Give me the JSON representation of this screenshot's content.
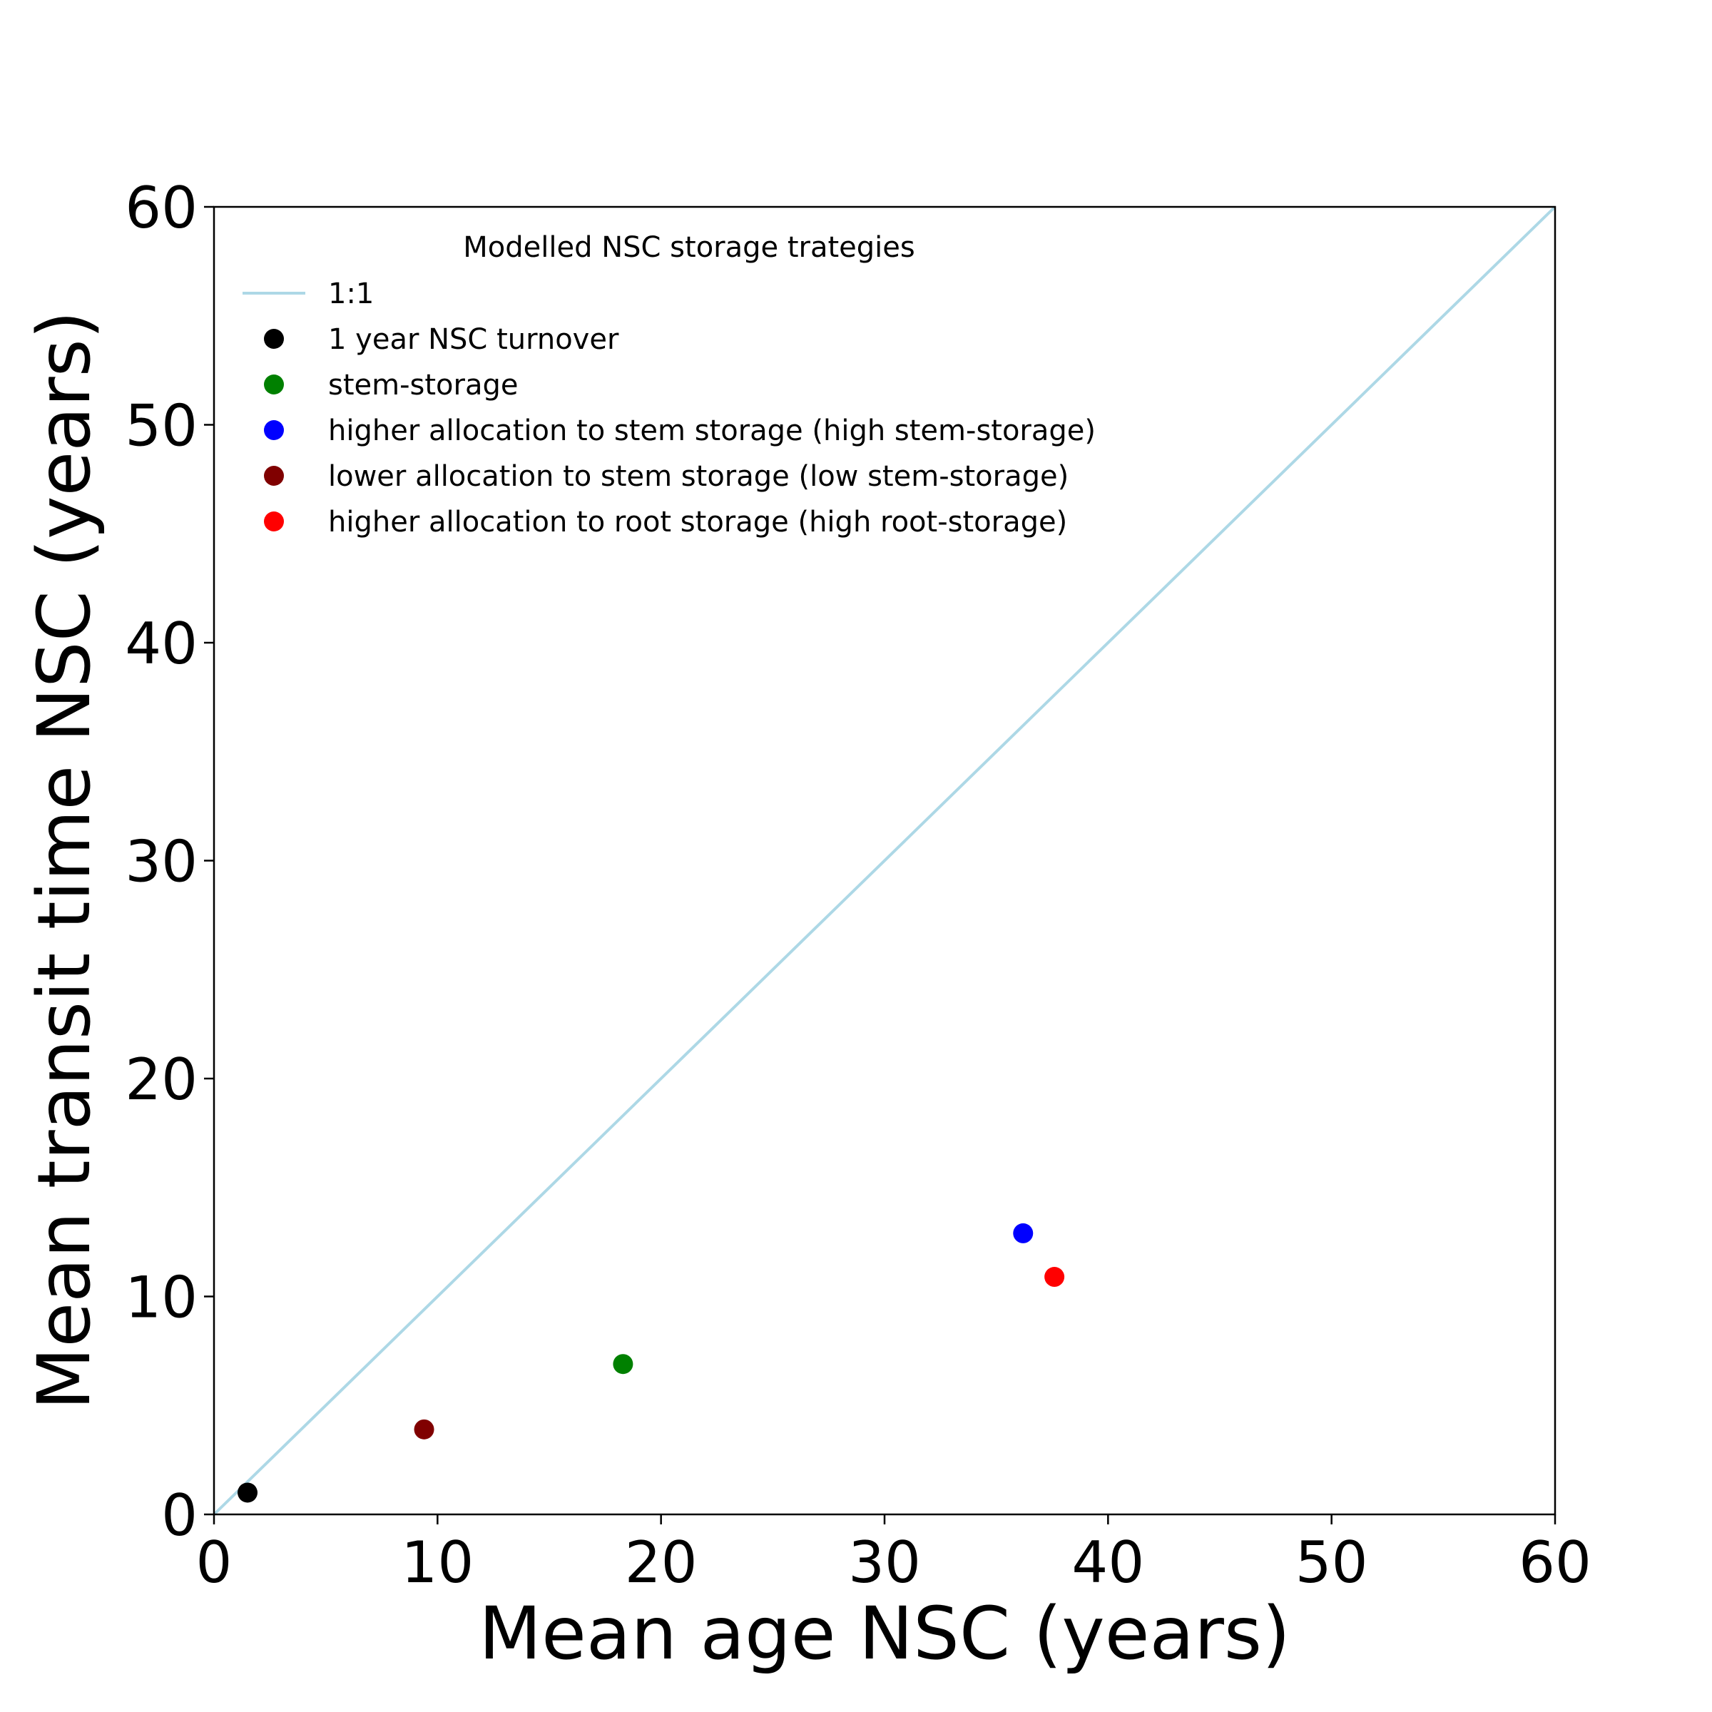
{
  "chart_data": {
    "type": "scatter",
    "title": "",
    "xlabel": "Mean age NSC (years)",
    "ylabel": "Mean transit time NSC (years)",
    "xlim": [
      0,
      60
    ],
    "ylim": [
      0,
      60
    ],
    "xticks": [
      0,
      10,
      20,
      30,
      40,
      50,
      60
    ],
    "yticks": [
      0,
      10,
      20,
      30,
      40,
      50,
      60
    ],
    "grid": false,
    "legend_title": "Modelled NSC storage trategies",
    "legend_placement": "upper-left",
    "reference_line": {
      "name": "1:1",
      "x": [
        0,
        60
      ],
      "y": [
        0,
        60
      ],
      "color": "#add8e6"
    },
    "series": [
      {
        "name": "1 year NSC turnover",
        "color": "#000000",
        "x": 1.5,
        "y": 1.0
      },
      {
        "name": "stem-storage",
        "color": "#008000",
        "x": 18.3,
        "y": 6.9
      },
      {
        "name": "higher allocation to stem storage (high stem-storage)",
        "color": "#0000ff",
        "x": 36.2,
        "y": 12.9
      },
      {
        "name": "lower allocation to stem storage (low stem-storage)",
        "color": "#800000",
        "x": 9.4,
        "y": 3.9
      },
      {
        "name": "higher allocation to root storage (high root-storage)",
        "color": "#ff0000",
        "x": 37.6,
        "y": 10.9
      }
    ]
  }
}
